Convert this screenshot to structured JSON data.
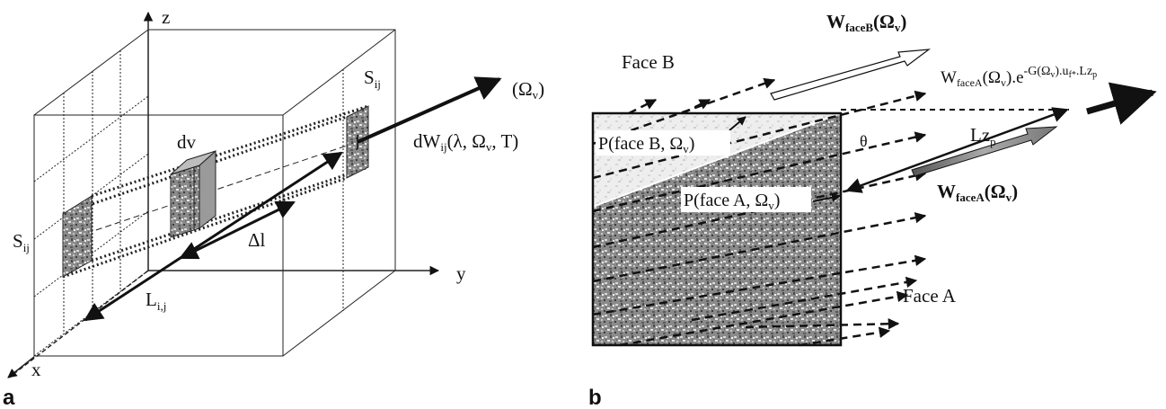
{
  "panel_a": {
    "letter": "a",
    "axes": {
      "z": "z",
      "y": "y",
      "x": "x"
    },
    "labels": {
      "omega": "(Ω",
      "omega_sub": "v",
      "omega_close": ")",
      "dw_main": "dW",
      "dw_sub": "ij",
      "dw_args": "(λ, Ω",
      "dw_args_sub": "v",
      "dw_args_tail": ", T)",
      "dv": "dv",
      "delta_l": "Δl",
      "l": "L",
      "l_sub": "i,j",
      "s_left": "S",
      "s_left_sub": "ij",
      "s_right": "S",
      "s_right_sub": "ij"
    }
  },
  "panel_b": {
    "letter": "b",
    "labels": {
      "face_b": "Face B",
      "face_a": "Face A",
      "wb_main": "W",
      "wb_sub": "faceB",
      "wb_args": "(Ω",
      "wb_args_sub": "v",
      "wb_close": ")",
      "wa_main": "W",
      "wa_sub": "faceA",
      "wa_args": "(Ω",
      "wa_args_sub": "v",
      "wa_close": ")",
      "eq_main": "W",
      "eq_sub": "faceA",
      "eq_mid": "(Ω",
      "eq_mid_sub": "v",
      "eq_tail": ").e",
      "eq_exp": "-G(Ω",
      "eq_exp_sub": "v",
      "eq_exp_tail": ").u",
      "eq_exp_sub2": "f*",
      "eq_exp_tail2": ".Lz",
      "eq_exp_sub3": "p",
      "pfb": "P(face B, Ω",
      "pfb_sub": "v",
      "pfb_close": ")",
      "pfa": "P(face A, Ω",
      "pfa_sub": "v",
      "pfa_close": ")",
      "theta": "θ",
      "lz": "Lz",
      "lz_sub": "p"
    }
  }
}
